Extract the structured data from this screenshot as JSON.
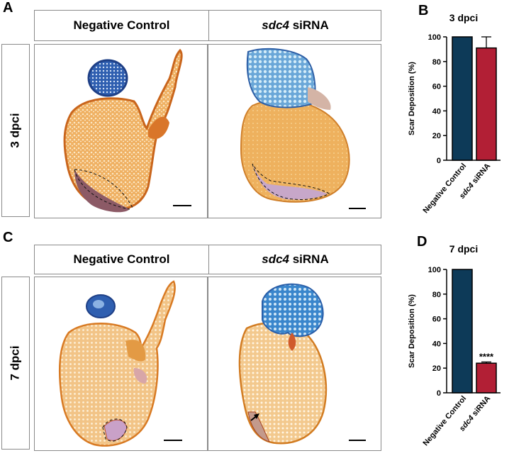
{
  "panels": {
    "A": "A",
    "B": "B",
    "C": "C",
    "D": "D"
  },
  "top_row": {
    "col1": "Negative Control",
    "col2_italic": "sdc4",
    "col2_rest": " siRNA",
    "row_label": "3 dpci"
  },
  "bottom_row": {
    "col1": "Negative Control",
    "col2_italic": "sdc4",
    "col2_rest": " siRNA",
    "row_label": "7 dpci"
  },
  "colors": {
    "negative_control": "#0d3a58",
    "sdc4_sirna": "#b21f35",
    "tissue_orange": "#e8962c",
    "scar_blue": "#2f6fc2"
  },
  "chart_data": [
    {
      "type": "bar",
      "title": "3 dpci",
      "categories": [
        "Negative Control",
        "sdc4 siRNA"
      ],
      "category_italic_part": [
        "",
        "sdc4"
      ],
      "values": [
        100,
        91
      ],
      "errors": [
        0,
        9
      ],
      "ylabel": "Scar Deposition (%)",
      "ylim": [
        0,
        100
      ],
      "yticks": [
        0,
        20,
        40,
        60,
        80,
        100
      ],
      "annotation": ""
    },
    {
      "type": "bar",
      "title": "7 dpci",
      "categories": [
        "Negative Control",
        "sdc4 siRNA"
      ],
      "category_italic_part": [
        "",
        "sdc4"
      ],
      "values": [
        100,
        24
      ],
      "errors": [
        0,
        1
      ],
      "ylabel": "Scar Deposition (%)",
      "ylim": [
        0,
        100
      ],
      "yticks": [
        0,
        20,
        40,
        60,
        80,
        100
      ],
      "annotation": "****"
    }
  ]
}
